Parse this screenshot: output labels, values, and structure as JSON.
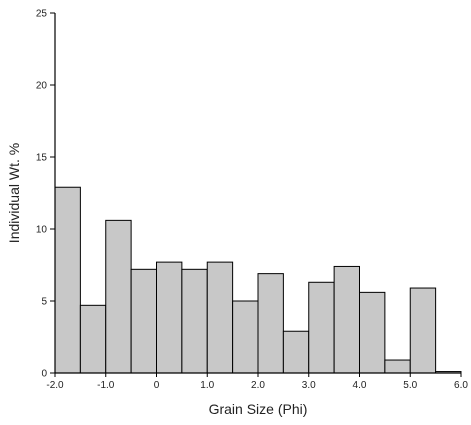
{
  "chart_data": {
    "type": "bar",
    "title": "",
    "xlabel": "Grain Size (Phi)",
    "ylabel": "Individual Wt. %",
    "xlim": [
      -2.0,
      6.0
    ],
    "ylim": [
      0,
      25
    ],
    "bin_width": 0.5,
    "x_ticks": [
      {
        "value": -2.0,
        "label": "-2.0"
      },
      {
        "value": -1.0,
        "label": "-1.0"
      },
      {
        "value": 0.0,
        "label": "0"
      },
      {
        "value": 1.0,
        "label": "1.0"
      },
      {
        "value": 2.0,
        "label": "2.0"
      },
      {
        "value": 3.0,
        "label": "3.0"
      },
      {
        "value": 4.0,
        "label": "4.0"
      },
      {
        "value": 5.0,
        "label": "5.0"
      },
      {
        "value": 6.0,
        "label": "6.0"
      }
    ],
    "y_ticks": [
      {
        "value": 0,
        "label": "0"
      },
      {
        "value": 5,
        "label": "5"
      },
      {
        "value": 10,
        "label": "10"
      },
      {
        "value": 15,
        "label": "15"
      },
      {
        "value": 20,
        "label": "20"
      },
      {
        "value": 25,
        "label": "25"
      }
    ],
    "bins": [
      -2.0,
      -1.5,
      -1.0,
      -0.5,
      0.0,
      0.5,
      1.0,
      1.5,
      2.0,
      2.5,
      3.0,
      3.5,
      4.0,
      4.5,
      5.0,
      5.5
    ],
    "values": [
      12.9,
      4.7,
      10.6,
      7.2,
      7.7,
      7.2,
      7.7,
      5.0,
      6.9,
      2.9,
      6.3,
      7.4,
      5.6,
      0.9,
      5.9,
      0.1
    ],
    "bar_color": "#c8c8c8",
    "grid": false
  }
}
